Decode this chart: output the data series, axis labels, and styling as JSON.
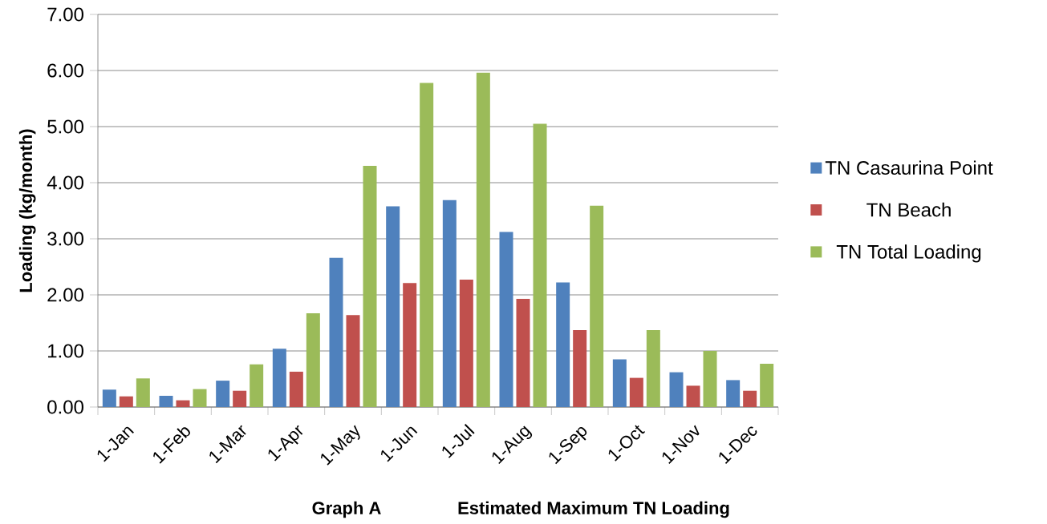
{
  "chart_data": {
    "type": "bar",
    "xlabel": "Graph A",
    "title": "Estimated Maximum TN Loading",
    "ylabel": "Loading (kg/month)",
    "categories": [
      "1-Jan",
      "1-Feb",
      "1-Mar",
      "1-Apr",
      "1-May",
      "1-Jun",
      "1-Jul",
      "1-Aug",
      "1-Sep",
      "1-Oct",
      "1-Nov",
      "1-Dec"
    ],
    "series": [
      {
        "name": "TN Casaurina Point",
        "color": "#4f81bd",
        "values": [
          0.31,
          0.2,
          0.47,
          1.04,
          2.66,
          3.58,
          3.69,
          3.12,
          2.22,
          0.85,
          0.62,
          0.48
        ]
      },
      {
        "name": "TN Beach",
        "color": "#c0504d",
        "values": [
          0.19,
          0.12,
          0.29,
          0.63,
          1.64,
          2.21,
          2.27,
          1.93,
          1.37,
          0.52,
          0.38,
          0.29
        ]
      },
      {
        "name": "TN Total Loading",
        "color": "#9bbb59",
        "values": [
          0.51,
          0.32,
          0.76,
          1.67,
          4.3,
          5.78,
          5.96,
          5.05,
          3.59,
          1.37,
          1.0,
          0.77
        ]
      }
    ],
    "ylim": [
      0,
      7
    ],
    "yticks": [
      {
        "value": 0,
        "label": "0.00"
      },
      {
        "value": 1,
        "label": "1.00"
      },
      {
        "value": 2,
        "label": "2.00"
      },
      {
        "value": 3,
        "label": "3.00"
      },
      {
        "value": 4,
        "label": "4.00"
      },
      {
        "value": 5,
        "label": "5.00"
      },
      {
        "value": 6,
        "label": "6.00"
      },
      {
        "value": 7,
        "label": "7.00"
      }
    ],
    "grid": "y",
    "legend": "right"
  }
}
